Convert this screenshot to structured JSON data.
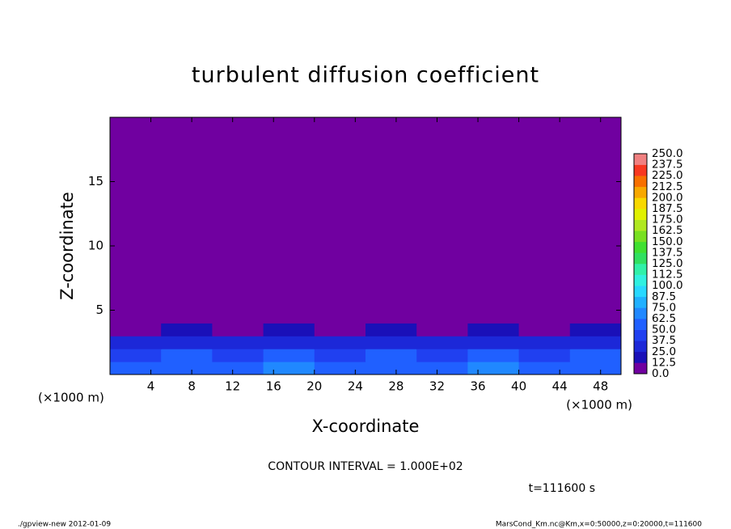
{
  "chart_data": {
    "type": "heatmap",
    "title": "turbulent diffusion coefficient",
    "x_label": "X-coordinate",
    "y_label": "Z-coordinate",
    "x_unit": "(×1000 m)",
    "y_unit": "(×1000 m)",
    "contour_note": "CONTOUR INTERVAL = 1.000E+02",
    "time_note": "t=111600 s",
    "footer_left": "./gpview-new  2012-01-09",
    "footer_right": "MarsCond_Km.nc@Km,x=0:50000,z=0:20000,t=111600",
    "xlim": [
      0,
      50
    ],
    "ylim": [
      0,
      20
    ],
    "xticks": [
      4,
      8,
      12,
      16,
      20,
      24,
      28,
      32,
      36,
      40,
      44,
      48
    ],
    "yticks": [
      5,
      10,
      15
    ],
    "xbins": [
      0,
      5,
      10,
      15,
      20,
      25,
      30,
      35,
      40,
      45,
      50
    ],
    "ybins": [
      0,
      1,
      2,
      3,
      4,
      20
    ],
    "z": [
      [
        55,
        60,
        50,
        65,
        55,
        60,
        50,
        70,
        55,
        60
      ],
      [
        45,
        50,
        40,
        50,
        45,
        50,
        45,
        55,
        45,
        50
      ],
      [
        30,
        35,
        25,
        35,
        30,
        35,
        30,
        35,
        30,
        35
      ],
      [
        10,
        20,
        10,
        15,
        10,
        15,
        10,
        15,
        10,
        20
      ],
      [
        0,
        0,
        0,
        0,
        0,
        0,
        0,
        0,
        0,
        0
      ]
    ],
    "levels": [
      {
        "value": 0,
        "label": "0.0"
      },
      {
        "value": 12.5,
        "label": "12.5"
      },
      {
        "value": 25,
        "label": "25.0"
      },
      {
        "value": 37.5,
        "label": "37.5"
      },
      {
        "value": 50,
        "label": "50.0"
      },
      {
        "value": 62.5,
        "label": "62.5"
      },
      {
        "value": 75,
        "label": "75.0"
      },
      {
        "value": 87.5,
        "label": "87.5"
      },
      {
        "value": 100,
        "label": "100.0"
      },
      {
        "value": 112.5,
        "label": "112.5"
      },
      {
        "value": 125,
        "label": "125.0"
      },
      {
        "value": 137.5,
        "label": "137.5"
      },
      {
        "value": 150,
        "label": "150.0"
      },
      {
        "value": 162.5,
        "label": "162.5"
      },
      {
        "value": 175,
        "label": "175.0"
      },
      {
        "value": 187.5,
        "label": "187.5"
      },
      {
        "value": 200,
        "label": "200.0"
      },
      {
        "value": 212.5,
        "label": "212.5"
      },
      {
        "value": 225,
        "label": "225.0"
      },
      {
        "value": 237.5,
        "label": "237.5"
      },
      {
        "value": 250,
        "label": "250.0"
      }
    ],
    "colors": [
      "#7000a0",
      "#1a10b8",
      "#1c28d8",
      "#2040f0",
      "#2060ff",
      "#2088ff",
      "#20b0ff",
      "#28d8ff",
      "#30f0e0",
      "#30f0a8",
      "#30e060",
      "#40e030",
      "#78e020",
      "#b0e820",
      "#e0f000",
      "#f8d800",
      "#f8a800",
      "#f87000",
      "#f83820",
      "#f08080"
    ]
  }
}
